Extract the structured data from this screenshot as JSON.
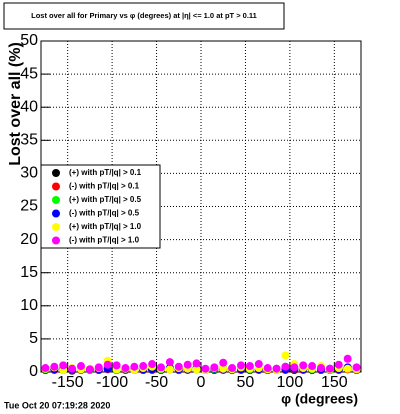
{
  "chart_data": {
    "type": "scatter",
    "title": "Lost over all for Primary vs φ (degrees) at |η| <= 1.0 at pT > 0.11",
    "x_label": "φ (degrees)",
    "y_label": "Lost over all (%)",
    "timestamp": "Tue Oct 20 07:19:28 2020",
    "xlim": [
      -180,
      180
    ],
    "ylim": [
      0,
      50
    ],
    "xticks": [
      -150,
      -100,
      -50,
      0,
      50,
      100,
      150
    ],
    "yticks": [
      0,
      5,
      10,
      15,
      20,
      25,
      30,
      35,
      40,
      45,
      50
    ],
    "grid": true,
    "legend": "left",
    "x": [
      -175,
      -165,
      -155,
      -145,
      -135,
      -125,
      -115,
      -105,
      -95,
      -85,
      -75,
      -65,
      -55,
      -45,
      -35,
      -25,
      -15,
      -5,
      5,
      15,
      25,
      35,
      45,
      55,
      65,
      75,
      85,
      95,
      105,
      115,
      125,
      135,
      145,
      155,
      165,
      175
    ],
    "series": [
      {
        "name": "(+) with pT/|q| > 0.1",
        "color": "#000000",
        "values": [
          0.3,
          0.4,
          0.3,
          0.2,
          0.4,
          0.3,
          0.3,
          0.5,
          0.3,
          0.4,
          0.3,
          0.3,
          0.4,
          0.3,
          0.5,
          0.3,
          0.4,
          0.4,
          0.3,
          0.3,
          0.5,
          0.3,
          0.4,
          0.3,
          0.4,
          0.3,
          0.3,
          0.4,
          0.3,
          0.4,
          0.3,
          0.3,
          0.3,
          0.4,
          0.5,
          0.3
        ]
      },
      {
        "name": "(-) with pT/|q| > 0.1",
        "color": "#ff0000",
        "values": [
          0.4,
          0.3,
          0.4,
          0.3,
          0.3,
          0.4,
          0.3,
          0.4,
          0.4,
          0.3,
          0.4,
          0.3,
          0.3,
          0.4,
          0.4,
          0.3,
          0.3,
          0.5,
          0.3,
          0.4,
          0.3,
          0.4,
          0.3,
          0.4,
          0.3,
          0.3,
          0.4,
          0.3,
          0.4,
          0.3,
          0.4,
          0.3,
          0.4,
          0.3,
          0.4,
          0.3
        ]
      },
      {
        "name": "(+) with pT/|q| > 0.5",
        "color": "#00ff00",
        "values": [
          0.4,
          0.5,
          0.3,
          0.4,
          0.4,
          0.3,
          0.5,
          0.6,
          0.3,
          0.4,
          0.3,
          0.5,
          0.5,
          0.4,
          0.6,
          0.4,
          0.5,
          0.5,
          0.3,
          0.4,
          0.6,
          0.4,
          0.5,
          0.4,
          0.5,
          0.4,
          0.3,
          0.8,
          0.5,
          0.5,
          0.4,
          0.4,
          0.3,
          0.5,
          0.6,
          0.4
        ]
      },
      {
        "name": "(-) with pT/|q| > 0.5",
        "color": "#0000ff",
        "values": [
          0.5,
          0.4,
          0.5,
          0.4,
          0.4,
          0.4,
          0.4,
          0.5,
          0.5,
          0.4,
          0.5,
          0.4,
          0.4,
          0.5,
          0.6,
          0.4,
          0.4,
          0.6,
          0.4,
          0.5,
          0.4,
          0.5,
          0.4,
          0.5,
          0.4,
          0.4,
          0.5,
          0.4,
          0.5,
          0.4,
          0.5,
          0.4,
          0.5,
          0.4,
          0.7,
          0.4
        ]
      },
      {
        "name": "(+) with pT/|q| > 1.0",
        "color": "#ffff00",
        "values": [
          0.5,
          0.7,
          0.3,
          0.6,
          0.4,
          0.5,
          0.6,
          1.7,
          0.4,
          0.5,
          0.3,
          0.6,
          0.8,
          0.5,
          0.4,
          0.6,
          0.5,
          0.4,
          0.3,
          0.6,
          0.5,
          0.4,
          0.7,
          0.5,
          0.6,
          0.4,
          0.3,
          2.5,
          1.2,
          0.6,
          0.5,
          0.9,
          0.4,
          0.6,
          0.5,
          0.4
        ]
      },
      {
        "name": "(-) with pT/|q| > 1.0",
        "color": "#ff00ff",
        "values": [
          0.6,
          0.8,
          1.0,
          0.5,
          0.9,
          0.4,
          0.7,
          1.1,
          1.0,
          0.6,
          0.8,
          0.9,
          1.2,
          0.7,
          1.5,
          0.8,
          1.1,
          1.3,
          0.5,
          0.7,
          1.4,
          0.6,
          1.0,
          0.9,
          1.2,
          0.6,
          0.5,
          0.8,
          0.7,
          1.0,
          0.9,
          0.6,
          0.5,
          1.1,
          2.0,
          0.7
        ]
      }
    ]
  }
}
